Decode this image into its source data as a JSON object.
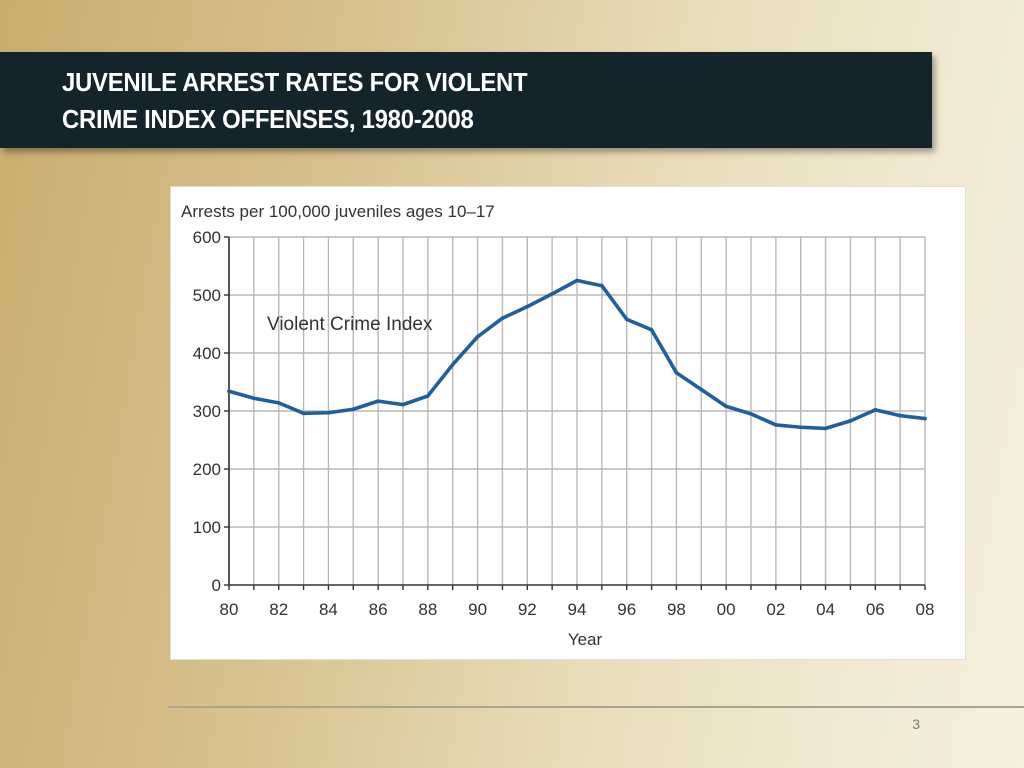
{
  "slide": {
    "title_line1": "JUVENILE ARREST RATES FOR VIOLENT",
    "title_line2": "CRIME INDEX OFFENSES, 1980-2008",
    "page_number": "3"
  },
  "colors": {
    "title_bar": "#13252a",
    "series_line": "#1f5f9e",
    "grid": "#b9b9b9"
  },
  "chart_data": {
    "type": "line",
    "title": "",
    "ylabel": "Arrests per 100,000 juveniles ages 10–17",
    "xlabel": "Year",
    "ylim": [
      0,
      600
    ],
    "yticks": [
      0,
      100,
      200,
      300,
      400,
      500,
      600
    ],
    "x": [
      1980,
      1981,
      1982,
      1983,
      1984,
      1985,
      1986,
      1987,
      1988,
      1989,
      1990,
      1991,
      1992,
      1993,
      1994,
      1995,
      1996,
      1997,
      1998,
      1999,
      2000,
      2001,
      2002,
      2003,
      2004,
      2005,
      2006,
      2007,
      2008
    ],
    "xtick_labels": [
      "80",
      "82",
      "84",
      "86",
      "88",
      "90",
      "92",
      "94",
      "96",
      "98",
      "00",
      "02",
      "04",
      "06",
      "08"
    ],
    "xtick_values": [
      1980,
      1982,
      1984,
      1986,
      1988,
      1990,
      1992,
      1994,
      1996,
      1998,
      2000,
      2002,
      2004,
      2006,
      2008
    ],
    "series": [
      {
        "name": "Violent Crime Index",
        "values": [
          334,
          322,
          314,
          296,
          297,
          303,
          317,
          311,
          326,
          380,
          428,
          460,
          480,
          502,
          525,
          516,
          458,
          440,
          366,
          337,
          308,
          295,
          276,
          272,
          270,
          283,
          302,
          292,
          287
        ]
      }
    ],
    "grid": true
  }
}
